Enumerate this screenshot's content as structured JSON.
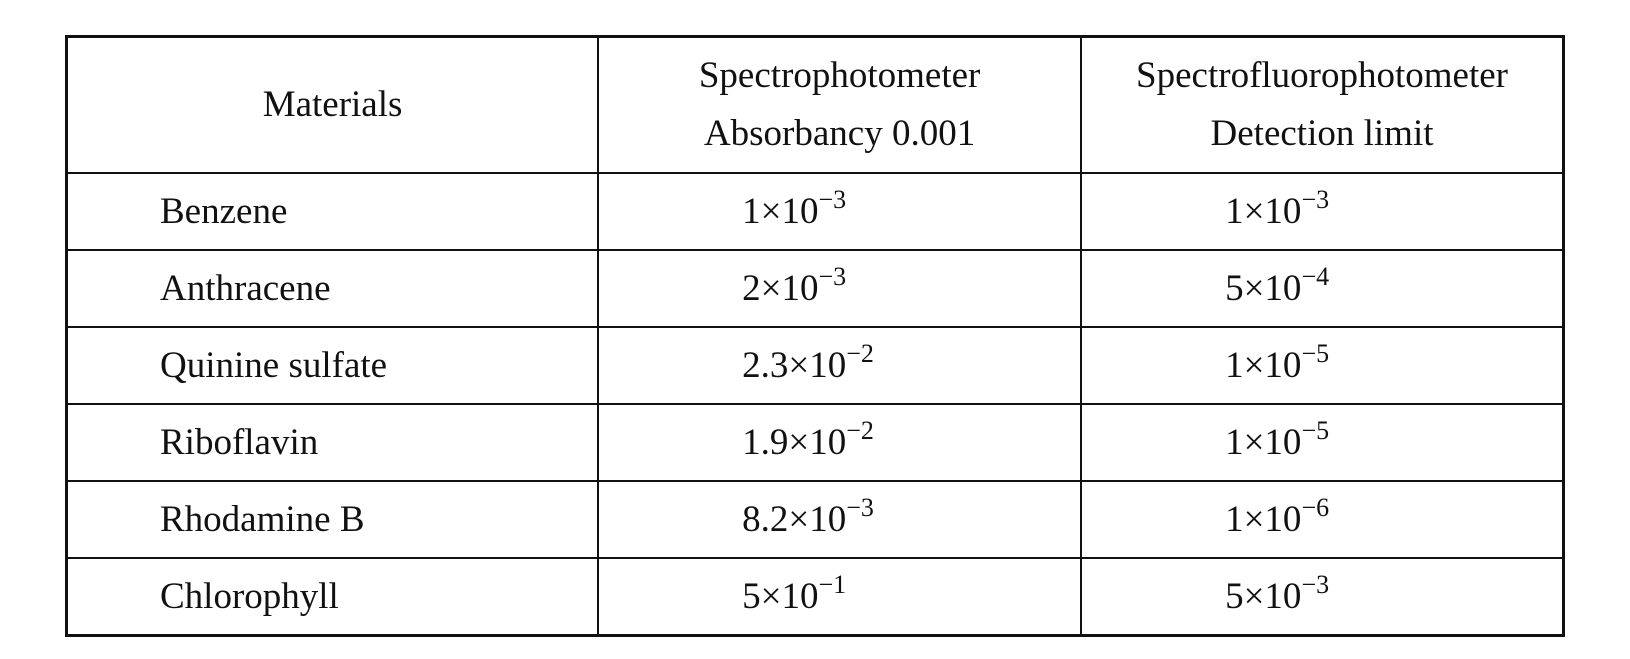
{
  "table": {
    "header": [
      [
        "Materials"
      ],
      [
        "Spectrophotometer",
        "Absorbancy 0.001"
      ],
      [
        "Spectrofluorophotometer",
        "Detection limit"
      ]
    ],
    "rows": [
      [
        "Benzene",
        {
          "base": "1×10",
          "exp": "−3"
        },
        {
          "base": "1×10",
          "exp": "−3"
        }
      ],
      [
        "Anthracene",
        {
          "base": "2×10",
          "exp": "−3"
        },
        {
          "base": "5×10",
          "exp": "−4"
        }
      ],
      [
        "Quinine sulfate",
        {
          "base": "2.3×10",
          "exp": "−2"
        },
        {
          "base": "1×10",
          "exp": "−5"
        }
      ],
      [
        "Riboflavin",
        {
          "base": "1.9×10",
          "exp": "−2"
        },
        {
          "base": "1×10",
          "exp": "−5"
        }
      ],
      [
        "Rhodamine B",
        {
          "base": "8.2×10",
          "exp": "−3"
        },
        {
          "base": "1×10",
          "exp": "−6"
        }
      ],
      [
        "Chlorophyll",
        {
          "base": "5×10",
          "exp": "−1"
        },
        {
          "base": "5×10",
          "exp": "−3"
        }
      ]
    ]
  }
}
